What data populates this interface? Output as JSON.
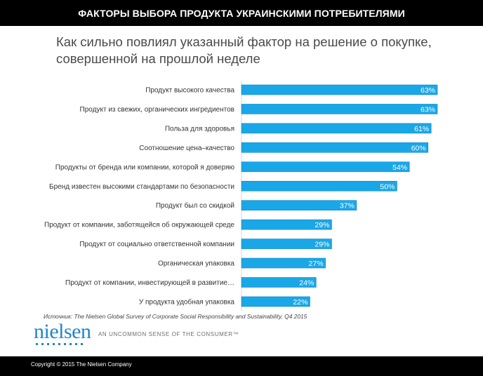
{
  "header": {
    "title": "ФАКТОРЫ ВЫБОРА ПРОДУКТА УКРАИНСКИМИ ПОТРЕБИТЕЛЯМИ"
  },
  "question": {
    "line1": "Как сильно повлиял указанный фактор на решение о покупке,",
    "line2": "совершенной на прошлой неделе"
  },
  "chart_data": {
    "type": "bar",
    "orientation": "horizontal",
    "title": "Как сильно повлиял указанный фактор на решение о покупке, совершенной на прошлой неделе",
    "categories": [
      "Продукт высокого качества",
      "Продукт из свежих, органических ингредиентов",
      "Польза для здоровья",
      "Соотношение цена–качество",
      "Продукты от бренда или компании, которой я доверяю",
      "Бренд известен высокими стандартами по безопасности",
      "Продукт был со скидкой",
      "Продукт от компании, заботящейся об окружающей среде",
      "Продукт от социально ответственной компании",
      "Органическая упаковка",
      "Продукт от компании, инвестирующей в развитие…",
      "У продукта удобная упаковка"
    ],
    "values": [
      63,
      63,
      61,
      60,
      54,
      50,
      37,
      29,
      29,
      27,
      24,
      22
    ],
    "value_labels": [
      "63%",
      "63%",
      "61%",
      "60%",
      "54%",
      "50%",
      "37%",
      "29%",
      "29%",
      "27%",
      "24%",
      "22%"
    ],
    "xlim": [
      0,
      63
    ],
    "bar_color": "#1aa7e8",
    "legend": "none",
    "grid": false
  },
  "source": "Источник: The Nielsen Global Survey of Corporate Social Responsibility and Sustainability, Q4 2015",
  "brand": {
    "logo": "nielsen",
    "tagline": "AN UNCOMMON SENSE OF THE CONSUMER™",
    "color": "#1f86c9"
  },
  "footer": {
    "copyright": "Copyright © 2015 The Nielsen Company"
  }
}
